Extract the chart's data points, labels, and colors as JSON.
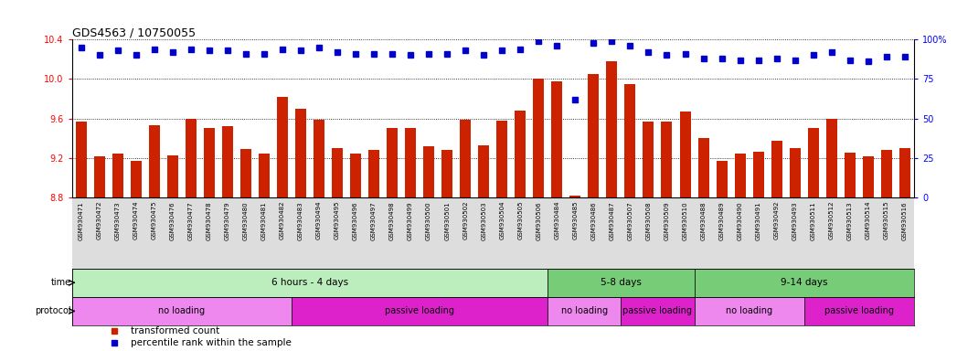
{
  "title": "GDS4563 / 10750055",
  "samples": [
    "GSM930471",
    "GSM930472",
    "GSM930473",
    "GSM930474",
    "GSM930475",
    "GSM930476",
    "GSM930477",
    "GSM930478",
    "GSM930479",
    "GSM930480",
    "GSM930481",
    "GSM930482",
    "GSM930483",
    "GSM930494",
    "GSM930495",
    "GSM930496",
    "GSM930497",
    "GSM930498",
    "GSM930499",
    "GSM930500",
    "GSM930501",
    "GSM930502",
    "GSM930503",
    "GSM930504",
    "GSM930505",
    "GSM930506",
    "GSM930484",
    "GSM930485",
    "GSM930486",
    "GSM930487",
    "GSM930507",
    "GSM930508",
    "GSM930509",
    "GSM930510",
    "GSM930488",
    "GSM930489",
    "GSM930490",
    "GSM930491",
    "GSM930492",
    "GSM930493",
    "GSM930511",
    "GSM930512",
    "GSM930513",
    "GSM930514",
    "GSM930515",
    "GSM930516"
  ],
  "bar_values": [
    9.57,
    9.22,
    9.24,
    9.17,
    9.53,
    9.23,
    9.6,
    9.5,
    9.52,
    9.29,
    9.24,
    9.82,
    9.7,
    9.59,
    9.3,
    9.24,
    9.28,
    9.5,
    9.5,
    9.32,
    9.28,
    9.59,
    9.33,
    9.58,
    9.68,
    10.0,
    9.98,
    8.82,
    10.05,
    10.18,
    9.95,
    9.57,
    9.57,
    9.67,
    9.4,
    9.17,
    9.24,
    9.26,
    9.37,
    9.3,
    9.5,
    9.6,
    9.25,
    9.22,
    9.28,
    9.3
  ],
  "percentile_values": [
    95,
    90,
    93,
    90,
    94,
    92,
    94,
    93,
    93,
    91,
    91,
    94,
    93,
    95,
    92,
    91,
    91,
    91,
    90,
    91,
    91,
    93,
    90,
    93,
    94,
    99,
    96,
    62,
    98,
    99,
    96,
    92,
    90,
    91,
    88,
    88,
    87,
    87,
    88,
    87,
    90,
    92,
    87,
    86,
    89,
    89
  ],
  "ylim_left": [
    8.8,
    10.4
  ],
  "ylim_right": [
    0,
    100
  ],
  "yticks_left": [
    8.8,
    9.2,
    9.6,
    10.0,
    10.4
  ],
  "yticks_right": [
    0,
    25,
    50,
    75,
    100
  ],
  "bar_color": "#cc2200",
  "dot_color": "#0000cc",
  "bar_bottom": 8.8,
  "time_groups": [
    {
      "label": "6 hours - 4 days",
      "start": 0,
      "end": 26,
      "color": "#bbeebc"
    },
    {
      "label": "5-8 days",
      "start": 26,
      "end": 34,
      "color": "#77cc77"
    },
    {
      "label": "9-14 days",
      "start": 34,
      "end": 46,
      "color": "#77cc77"
    }
  ],
  "protocol_groups": [
    {
      "label": "no loading",
      "start": 0,
      "end": 12,
      "color": "#ee88ee"
    },
    {
      "label": "passive loading",
      "start": 12,
      "end": 26,
      "color": "#dd22cc"
    },
    {
      "label": "no loading",
      "start": 26,
      "end": 30,
      "color": "#ee88ee"
    },
    {
      "label": "passive loading",
      "start": 30,
      "end": 34,
      "color": "#dd22cc"
    },
    {
      "label": "no loading",
      "start": 34,
      "end": 40,
      "color": "#ee88ee"
    },
    {
      "label": "passive loading",
      "start": 40,
      "end": 46,
      "color": "#dd22cc"
    }
  ]
}
